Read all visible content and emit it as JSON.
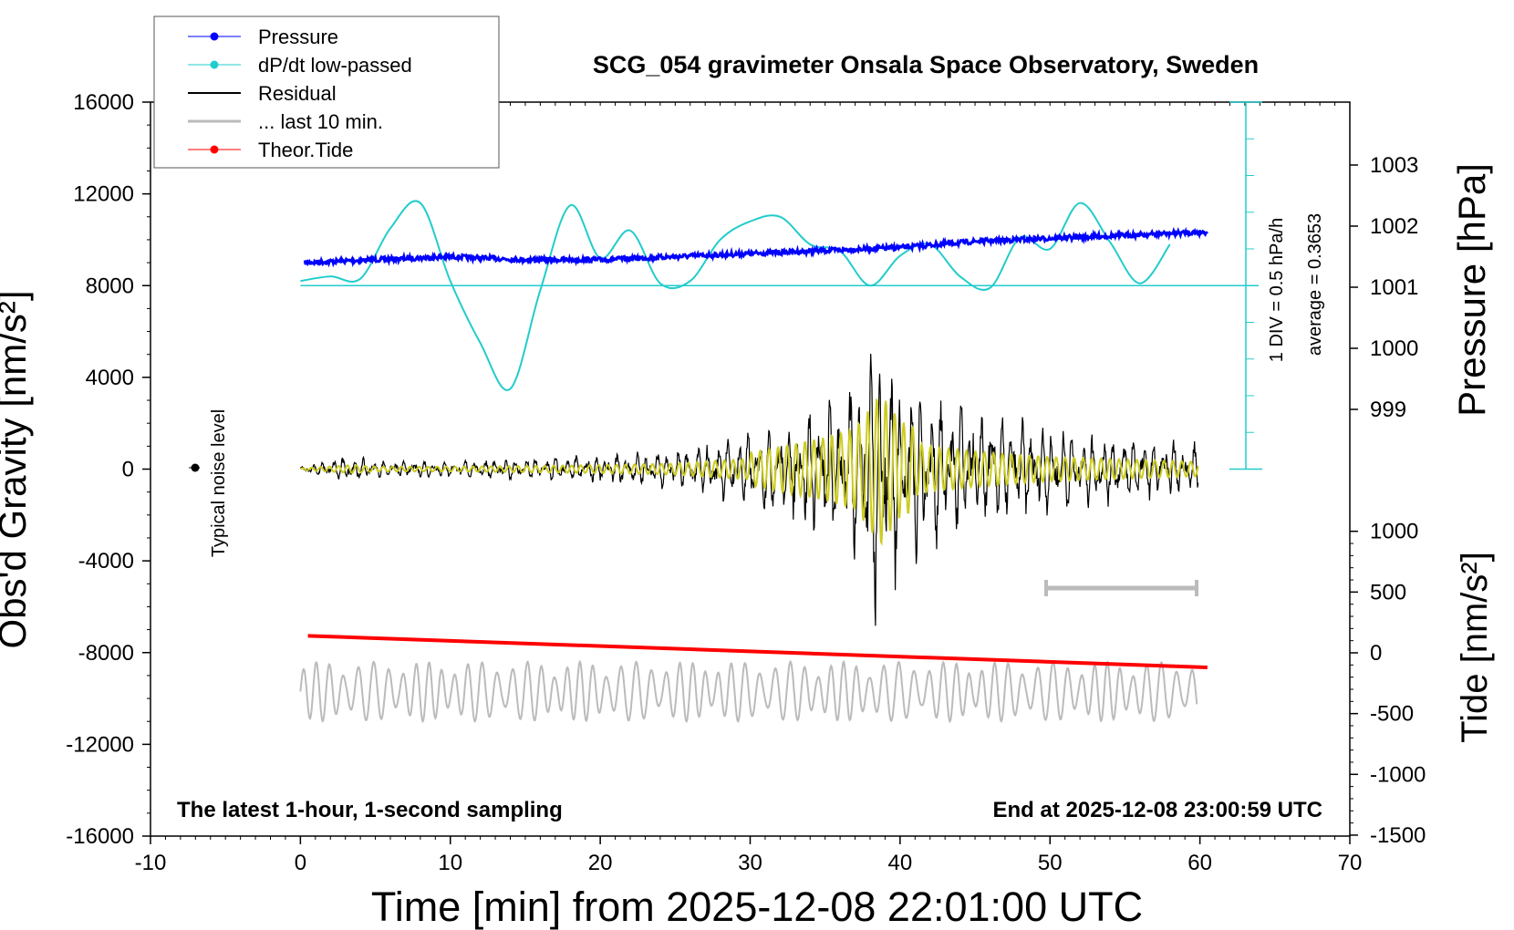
{
  "chart_data": {
    "type": "line",
    "title": "SCG_054 gravimeter Onsala Space Observatory, Sweden",
    "xlabel": "Time [min] from 2025-12-08 22:01:00 UTC",
    "ylabel_left": "Obs'd Gravity [nm/s²]",
    "ylabel_right_pressure": "Pressure [hPa]",
    "ylabel_right_tide": "Tide [nm/s²]",
    "xlim": [
      -10,
      70
    ],
    "ylim_left": [
      -16000,
      16000
    ],
    "xticks": [
      "-10",
      "0",
      "10",
      "20",
      "30",
      "40",
      "50",
      "60",
      "70"
    ],
    "yticks_left": [
      "16000",
      "12000",
      "8000",
      "4000",
      "0",
      "-4000",
      "-8000",
      "-12000",
      "-16000"
    ],
    "yticks_pressure": [
      "1003",
      "1002",
      "1001",
      "1000",
      "999"
    ],
    "yticks_tide": [
      "1000",
      "500",
      "0",
      "-500",
      "-1000",
      "-1500"
    ],
    "legend": {
      "placement": "top-left",
      "entries": [
        {
          "label": "Pressure",
          "color": "#0000ff",
          "marker": true
        },
        {
          "label": "dP/dt low-passed",
          "color": "#22cccc",
          "marker": true
        },
        {
          "label": "Residual",
          "color": "#000000",
          "marker": false
        },
        {
          "label": "... last 10 min.",
          "color": "#bbbbbb",
          "marker": false
        },
        {
          "label": "Theor.Tide",
          "color": "#ff0000",
          "marker": true
        }
      ]
    },
    "annotations": {
      "bottom_left": "The latest 1-hour, 1-second sampling",
      "bottom_right": "End at 2025-12-08 23:00:59 UTC",
      "noise_label": "Typical noise level",
      "scale_div": "1 DIV = 0.5 hPa/h",
      "average": "average = 0.3653"
    },
    "series": [
      {
        "name": "Pressure",
        "axis": "pressure_hPa",
        "x": [
          0,
          5,
          10,
          15,
          20,
          25,
          30,
          35,
          40,
          45,
          50,
          55,
          60
        ],
        "y": [
          1001.4,
          1001.45,
          1001.5,
          1001.45,
          1001.45,
          1001.5,
          1001.55,
          1001.6,
          1001.65,
          1001.75,
          1001.8,
          1001.85,
          1001.9
        ]
      },
      {
        "name": "dP/dt low-passed",
        "axis": "left_gravity",
        "x": [
          0,
          2,
          4,
          6,
          8,
          10,
          12,
          14,
          16,
          18,
          20,
          22,
          24,
          26,
          28,
          30,
          32,
          34,
          36,
          38,
          40,
          42,
          44,
          46,
          48,
          50,
          52,
          54,
          56,
          58
        ],
        "y": [
          8200,
          8400,
          8300,
          10500,
          11600,
          8200,
          5500,
          3500,
          7800,
          11500,
          9200,
          10400,
          8100,
          8200,
          10000,
          10800,
          11000,
          9800,
          9500,
          8000,
          9300,
          9800,
          8400,
          7900,
          10100,
          9600,
          11600,
          9900,
          8100,
          9800
        ]
      },
      {
        "name": "Residual",
        "axis": "left_gravity",
        "amplitude_envelope": {
          "x": [
            0,
            3.5,
            5,
            10,
            20,
            25,
            30,
            33,
            35,
            37,
            38.7,
            40,
            42,
            45,
            50,
            55,
            60
          ],
          "y": [
            100,
            500,
            300,
            300,
            500,
            700,
            1300,
            2000,
            2500,
            3200,
            6000,
            3800,
            2800,
            2200,
            1500,
            1200,
            900
          ]
        }
      },
      {
        "name": "... last 10 min.",
        "axis": "left_gravity",
        "x": [
          0,
          60
        ],
        "y": [
          -9700,
          -9700
        ],
        "amplitude": 1300
      },
      {
        "name": "Theor.Tide",
        "axis": "tide_nm_s2",
        "x": [
          0.5,
          60.5
        ],
        "y": [
          140,
          -120
        ]
      }
    ]
  }
}
